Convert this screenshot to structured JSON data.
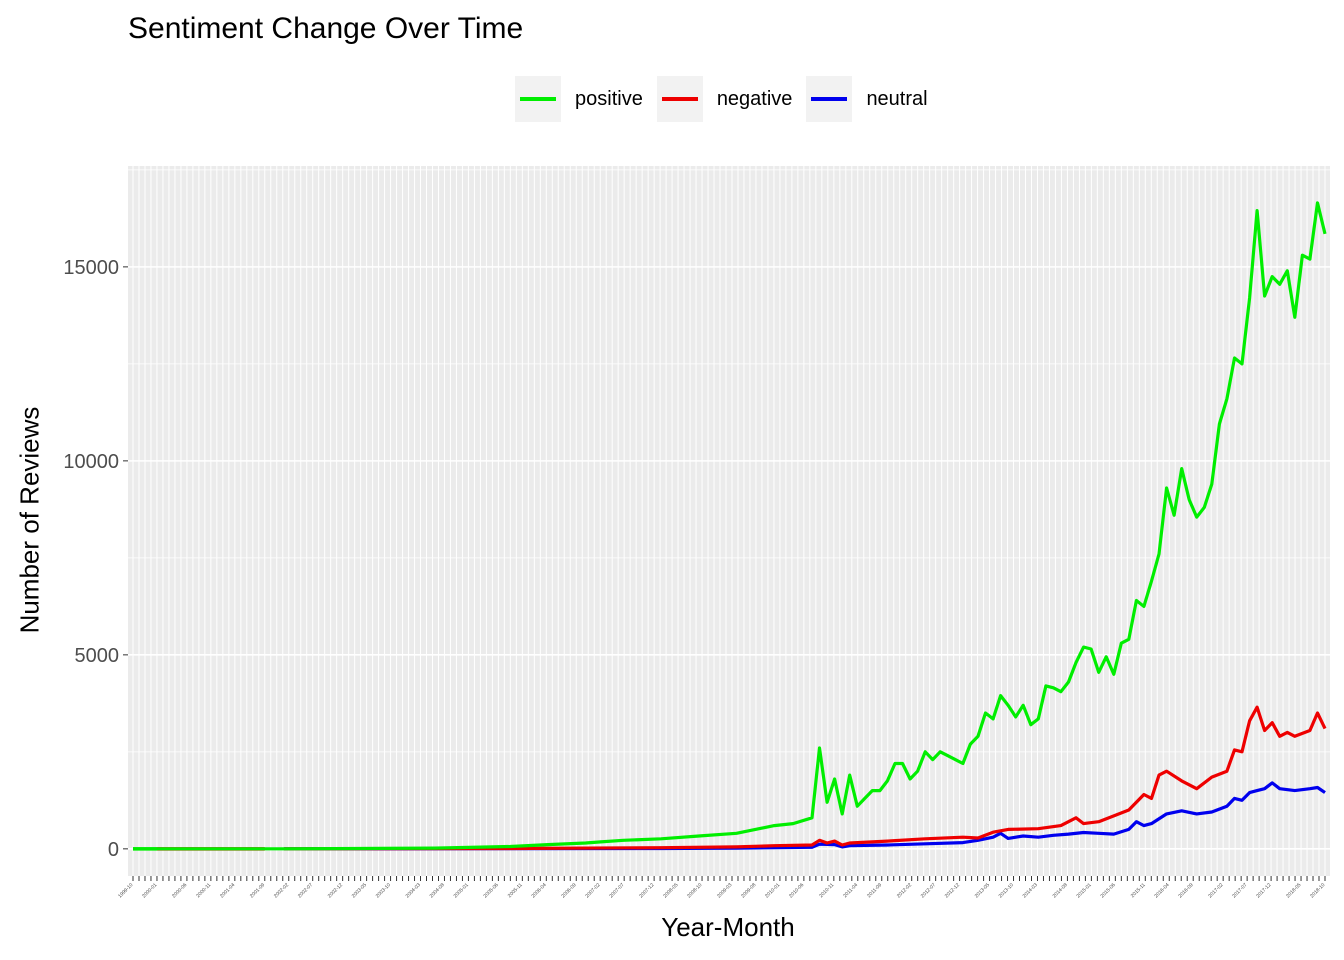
{
  "chart_data": {
    "type": "line",
    "title": "Sentiment Change Over Time",
    "xlabel": "Year-Month",
    "ylabel": "Number of Reviews",
    "ylim": [
      -700,
      17600
    ],
    "yticks": [
      0,
      5000,
      10000,
      15000
    ],
    "grid": true,
    "legend_position": "top",
    "n_months": 200,
    "x_tick_labels": [
      "1999-10",
      "2000-01",
      "2000-06",
      "2000-11",
      "2001-04",
      "2001-09",
      "2002-02",
      "2002-07",
      "2002-12",
      "2003-05",
      "2003-10",
      "2004-03",
      "2004-08",
      "2005-01",
      "2005-06",
      "2005-11",
      "2006-04",
      "2006-09",
      "2007-02",
      "2007-07",
      "2007-12",
      "2008-05",
      "2008-10",
      "2009-03",
      "2009-08",
      "2010-01",
      "2010-06",
      "2010-11",
      "2011-04",
      "2011-09",
      "2012-02",
      "2012-07",
      "2012-12",
      "2013-05",
      "2013-10",
      "2014-03",
      "2014-08",
      "2015-01",
      "2015-06",
      "2015-11",
      "2016-04",
      "2016-09",
      "2017-02",
      "2017-07",
      "2017-12",
      "2018-05",
      "2018-10"
    ],
    "series": [
      {
        "name": "positive",
        "color": "#00ee00",
        "points": [
          [
            0,
            0
          ],
          [
            8,
            0
          ],
          [
            14,
            0
          ],
          [
            40,
            0
          ],
          [
            60,
            10
          ],
          [
            80,
            20
          ],
          [
            100,
            60
          ],
          [
            110,
            110
          ],
          [
            120,
            150
          ],
          [
            124,
            180
          ],
          [
            130,
            220
          ],
          [
            140,
            260
          ],
          [
            150,
            330
          ],
          [
            160,
            400
          ],
          [
            170,
            600
          ],
          [
            175,
            650
          ],
          [
            180,
            800
          ],
          [
            182,
            2600
          ],
          [
            184,
            1200
          ],
          [
            186,
            1800
          ],
          [
            188,
            900
          ],
          [
            190,
            1900
          ],
          [
            192,
            1100
          ],
          [
            194,
            1300
          ],
          [
            196,
            1500
          ],
          [
            198,
            1500
          ],
          [
            200,
            1750
          ],
          [
            202,
            2200
          ],
          [
            204,
            2200
          ],
          [
            206,
            1800
          ],
          [
            208,
            2000
          ],
          [
            210,
            2500
          ],
          [
            212,
            2300
          ],
          [
            214,
            2500
          ],
          [
            216,
            2400
          ],
          [
            218,
            2300
          ],
          [
            220,
            2200
          ],
          [
            222,
            2700
          ],
          [
            224,
            2900
          ],
          [
            226,
            3500
          ],
          [
            228,
            3350
          ],
          [
            230,
            3950
          ],
          [
            232,
            3700
          ],
          [
            234,
            3400
          ],
          [
            236,
            3700
          ],
          [
            238,
            3200
          ],
          [
            240,
            3350
          ],
          [
            242,
            4200
          ],
          [
            244,
            4150
          ],
          [
            246,
            4050
          ],
          [
            248,
            4300
          ],
          [
            250,
            4800
          ],
          [
            252,
            5200
          ],
          [
            254,
            5150
          ],
          [
            256,
            4550
          ],
          [
            258,
            4950
          ],
          [
            260,
            4500
          ],
          [
            262,
            5300
          ],
          [
            264,
            5400
          ],
          [
            266,
            6400
          ],
          [
            268,
            6250
          ],
          [
            270,
            6900
          ],
          [
            272,
            7600
          ],
          [
            274,
            9300
          ],
          [
            276,
            8600
          ],
          [
            278,
            9800
          ],
          [
            280,
            9000
          ],
          [
            282,
            8550
          ],
          [
            284,
            8800
          ],
          [
            286,
            9400
          ],
          [
            288,
            10950
          ],
          [
            290,
            11600
          ],
          [
            292,
            12650
          ],
          [
            294,
            12500
          ],
          [
            296,
            14200
          ],
          [
            298,
            16450
          ],
          [
            300,
            14250
          ],
          [
            302,
            14750
          ],
          [
            304,
            14550
          ],
          [
            306,
            14900
          ],
          [
            308,
            13700
          ],
          [
            310,
            15300
          ],
          [
            312,
            15200
          ],
          [
            314,
            16650
          ],
          [
            316,
            15850
          ]
        ]
      },
      {
        "name": "negative",
        "color": "#ee0000",
        "points": [
          [
            0,
            0
          ],
          [
            40,
            0
          ],
          [
            100,
            10
          ],
          [
            140,
            30
          ],
          [
            160,
            50
          ],
          [
            170,
            80
          ],
          [
            180,
            100
          ],
          [
            182,
            220
          ],
          [
            184,
            150
          ],
          [
            186,
            200
          ],
          [
            188,
            100
          ],
          [
            190,
            150
          ],
          [
            200,
            200
          ],
          [
            210,
            260
          ],
          [
            220,
            300
          ],
          [
            224,
            280
          ],
          [
            228,
            430
          ],
          [
            232,
            500
          ],
          [
            240,
            520
          ],
          [
            246,
            600
          ],
          [
            250,
            800
          ],
          [
            252,
            650
          ],
          [
            256,
            700
          ],
          [
            260,
            850
          ],
          [
            264,
            1000
          ],
          [
            268,
            1400
          ],
          [
            270,
            1300
          ],
          [
            272,
            1900
          ],
          [
            274,
            2000
          ],
          [
            278,
            1750
          ],
          [
            282,
            1550
          ],
          [
            286,
            1850
          ],
          [
            290,
            2000
          ],
          [
            292,
            2550
          ],
          [
            294,
            2500
          ],
          [
            296,
            3300
          ],
          [
            298,
            3650
          ],
          [
            300,
            3050
          ],
          [
            302,
            3250
          ],
          [
            304,
            2900
          ],
          [
            306,
            3000
          ],
          [
            308,
            2900
          ],
          [
            312,
            3050
          ],
          [
            314,
            3500
          ],
          [
            316,
            3100
          ]
        ]
      },
      {
        "name": "neutral",
        "color": "#0000ee",
        "points": [
          [
            0,
            0
          ],
          [
            40,
            0
          ],
          [
            100,
            5
          ],
          [
            140,
            10
          ],
          [
            160,
            20
          ],
          [
            170,
            30
          ],
          [
            180,
            40
          ],
          [
            182,
            120
          ],
          [
            186,
            110
          ],
          [
            188,
            50
          ],
          [
            190,
            80
          ],
          [
            200,
            100
          ],
          [
            210,
            130
          ],
          [
            220,
            160
          ],
          [
            224,
            220
          ],
          [
            228,
            300
          ],
          [
            230,
            400
          ],
          [
            232,
            270
          ],
          [
            236,
            330
          ],
          [
            240,
            300
          ],
          [
            244,
            350
          ],
          [
            248,
            380
          ],
          [
            252,
            420
          ],
          [
            256,
            400
          ],
          [
            260,
            380
          ],
          [
            264,
            500
          ],
          [
            266,
            700
          ],
          [
            268,
            600
          ],
          [
            270,
            650
          ],
          [
            274,
            900
          ],
          [
            278,
            980
          ],
          [
            282,
            900
          ],
          [
            286,
            950
          ],
          [
            290,
            1100
          ],
          [
            292,
            1300
          ],
          [
            294,
            1250
          ],
          [
            296,
            1450
          ],
          [
            298,
            1500
          ],
          [
            300,
            1550
          ],
          [
            302,
            1700
          ],
          [
            304,
            1550
          ],
          [
            308,
            1500
          ],
          [
            312,
            1550
          ],
          [
            314,
            1580
          ],
          [
            316,
            1450
          ]
        ]
      }
    ],
    "pre_window_colors": [
      {
        "from": 0,
        "to": 4,
        "color": "#00ee00"
      },
      {
        "from": 4,
        "to": 22,
        "color": "#ee0000"
      }
    ]
  }
}
